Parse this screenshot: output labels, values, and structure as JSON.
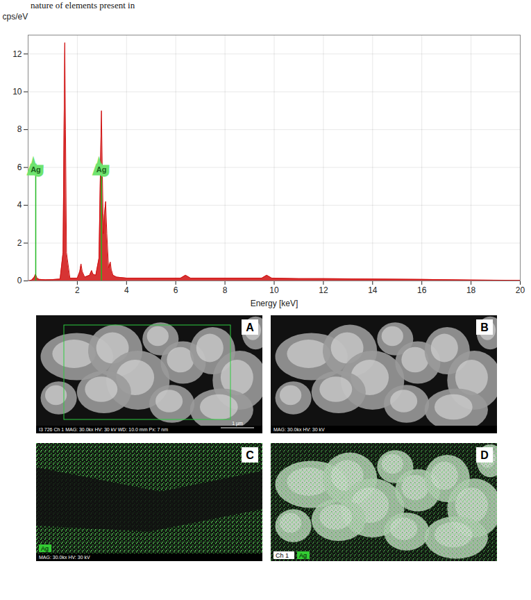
{
  "header_text": "nature of elements present in",
  "chart_data": {
    "type": "area",
    "y_label": "cps/eV",
    "x_label": "Energy [keV]",
    "x": [
      0,
      0.15,
      0.25,
      0.3,
      0.36,
      0.45,
      0.7,
      1.0,
      1.3,
      1.42,
      1.46,
      1.49,
      1.52,
      1.56,
      1.7,
      2.0,
      2.1,
      2.15,
      2.2,
      2.3,
      2.5,
      2.58,
      2.64,
      2.75,
      2.88,
      2.94,
      2.98,
      3.02,
      3.06,
      3.1,
      3.15,
      3.2,
      3.27,
      3.34,
      3.38,
      3.45,
      3.6,
      4.0,
      5.0,
      6.2,
      6.4,
      6.6,
      8.0,
      9.5,
      9.7,
      9.9,
      11.0,
      12.0,
      14.0,
      16.0,
      18.0,
      20.0
    ],
    "values": [
      0,
      0.05,
      0.2,
      0.35,
      0.15,
      0.08,
      0.06,
      0.07,
      0.1,
      1.5,
      8.0,
      12.6,
      8.0,
      1.5,
      0.15,
      0.15,
      0.5,
      0.9,
      0.5,
      0.2,
      0.3,
      0.55,
      0.35,
      0.3,
      1.2,
      6.0,
      9.0,
      5.5,
      2.5,
      3.5,
      4.2,
      2.5,
      0.7,
      1.0,
      0.6,
      0.3,
      0.2,
      0.15,
      0.15,
      0.15,
      0.3,
      0.15,
      0.15,
      0.15,
      0.3,
      0.15,
      0.12,
      0.12,
      0.1,
      0.08,
      0.05,
      0.03
    ],
    "color": "#d01010",
    "xlim": [
      0,
      20
    ],
    "ylim": [
      0,
      13
    ],
    "xticks": [
      2,
      4,
      6,
      8,
      10,
      12,
      14,
      16,
      18,
      20
    ],
    "yticks": [
      0,
      2,
      4,
      6,
      8,
      10,
      12
    ],
    "grid": true,
    "annotations": [
      {
        "text": "Ag",
        "x": 0.31,
        "y": 5.6,
        "color": "#22b822"
      },
      {
        "text": "Ag",
        "x": 2.98,
        "y": 5.6,
        "color": "#22b822"
      }
    ]
  },
  "panels": [
    {
      "letter": "A",
      "footer": [
        "I3 726",
        "Ch 1",
        "MAG: 30.0kx",
        "HV: 30 kV",
        "WD: 10.0 mm",
        "Px: 7 nm"
      ],
      "scale_bar": "1 µm"
    },
    {
      "letter": "B",
      "footer": [
        "MAG: 30.0kx",
        "HV: 30 kV"
      ]
    },
    {
      "letter": "C",
      "channels": [
        "Ag"
      ],
      "footer": [
        "MAG: 30.0kx",
        "HV: 30 kV"
      ]
    },
    {
      "letter": "D",
      "channels": [
        "Ch 1",
        "Ag"
      ]
    }
  ]
}
